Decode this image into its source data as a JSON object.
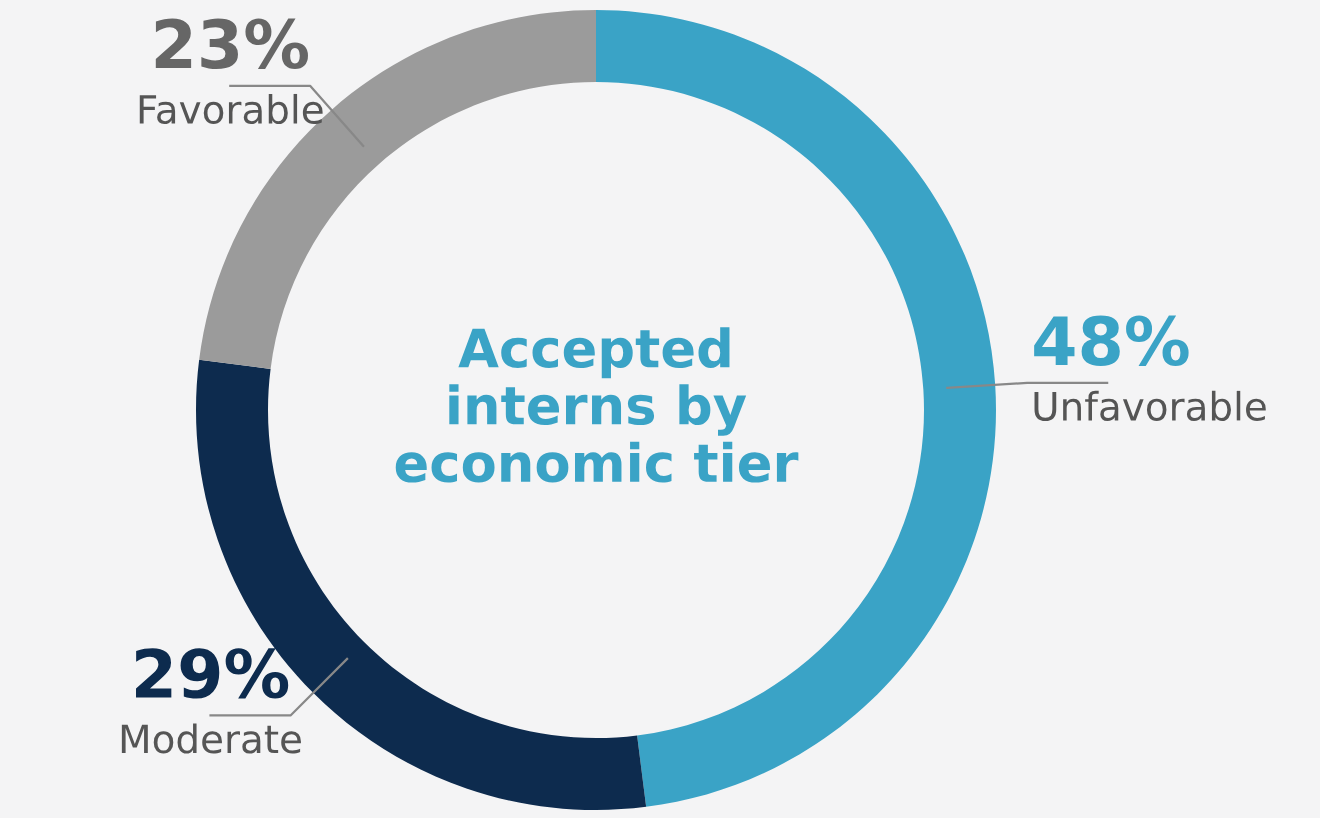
{
  "chart_data": {
    "type": "donut",
    "title": "Accepted\ninterns by\neconomic tier",
    "categories": [
      "Unfavorable",
      "Moderate",
      "Favorable"
    ],
    "values": [
      48,
      29,
      23
    ],
    "colors": [
      "#3aa3c6",
      "#0d2b4e",
      "#9b9b9b"
    ],
    "value_labels": [
      "48%",
      "29%",
      "23%"
    ],
    "legend": false
  }
}
